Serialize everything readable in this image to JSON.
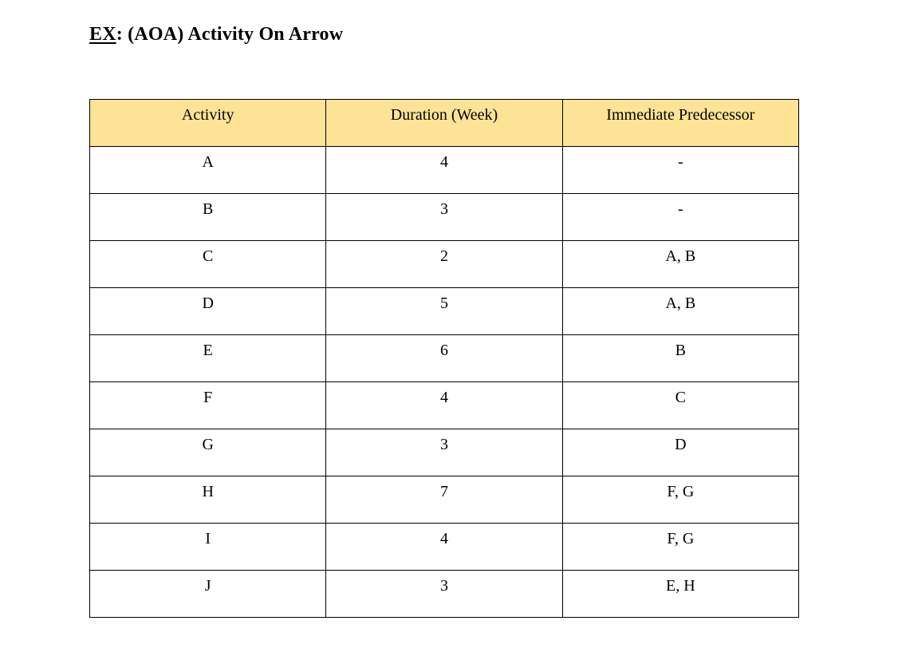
{
  "page": {
    "title_prefix": "EX",
    "title_rest": ": (AOA) Activity On Arrow"
  },
  "table": {
    "header_bg": "#FDE395",
    "border_color": "#000000",
    "columns": [
      "Activity",
      "Duration (Week)",
      "Immediate Predecessor"
    ],
    "rows": [
      {
        "activity": "A",
        "duration": "4",
        "predecessor": "-"
      },
      {
        "activity": "B",
        "duration": "3",
        "predecessor": "-"
      },
      {
        "activity": "C",
        "duration": "2",
        "predecessor": "A, B"
      },
      {
        "activity": "D",
        "duration": "5",
        "predecessor": "A, B"
      },
      {
        "activity": "E",
        "duration": "6",
        "predecessor": "B"
      },
      {
        "activity": "F",
        "duration": "4",
        "predecessor": "C"
      },
      {
        "activity": "G",
        "duration": "3",
        "predecessor": "D"
      },
      {
        "activity": "H",
        "duration": "7",
        "predecessor": "F, G"
      },
      {
        "activity": "I",
        "duration": "4",
        "predecessor": "F, G"
      },
      {
        "activity": "J",
        "duration": "3",
        "predecessor": "E, H"
      }
    ]
  }
}
